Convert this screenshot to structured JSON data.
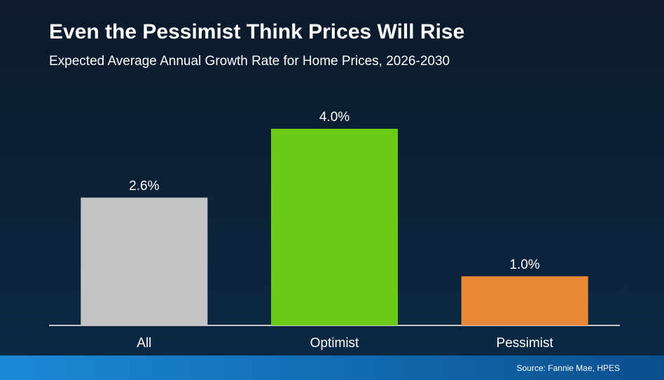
{
  "chart_data": {
    "type": "bar",
    "title": "Even the Pessimist Think Prices Will Rise",
    "subtitle": "Expected Average Annual Growth Rate for Home Prices, 2026-2030",
    "categories": [
      "All",
      "Optimist",
      "Pessimist"
    ],
    "values": [
      2.6,
      4.0,
      1.0
    ],
    "value_labels": [
      "2.6%",
      "4.0%",
      "1.0%"
    ],
    "colors": [
      "#c1c3c4",
      "#6cc918",
      "#e98836"
    ],
    "source": "Source: Fannie Mae, HPES"
  }
}
